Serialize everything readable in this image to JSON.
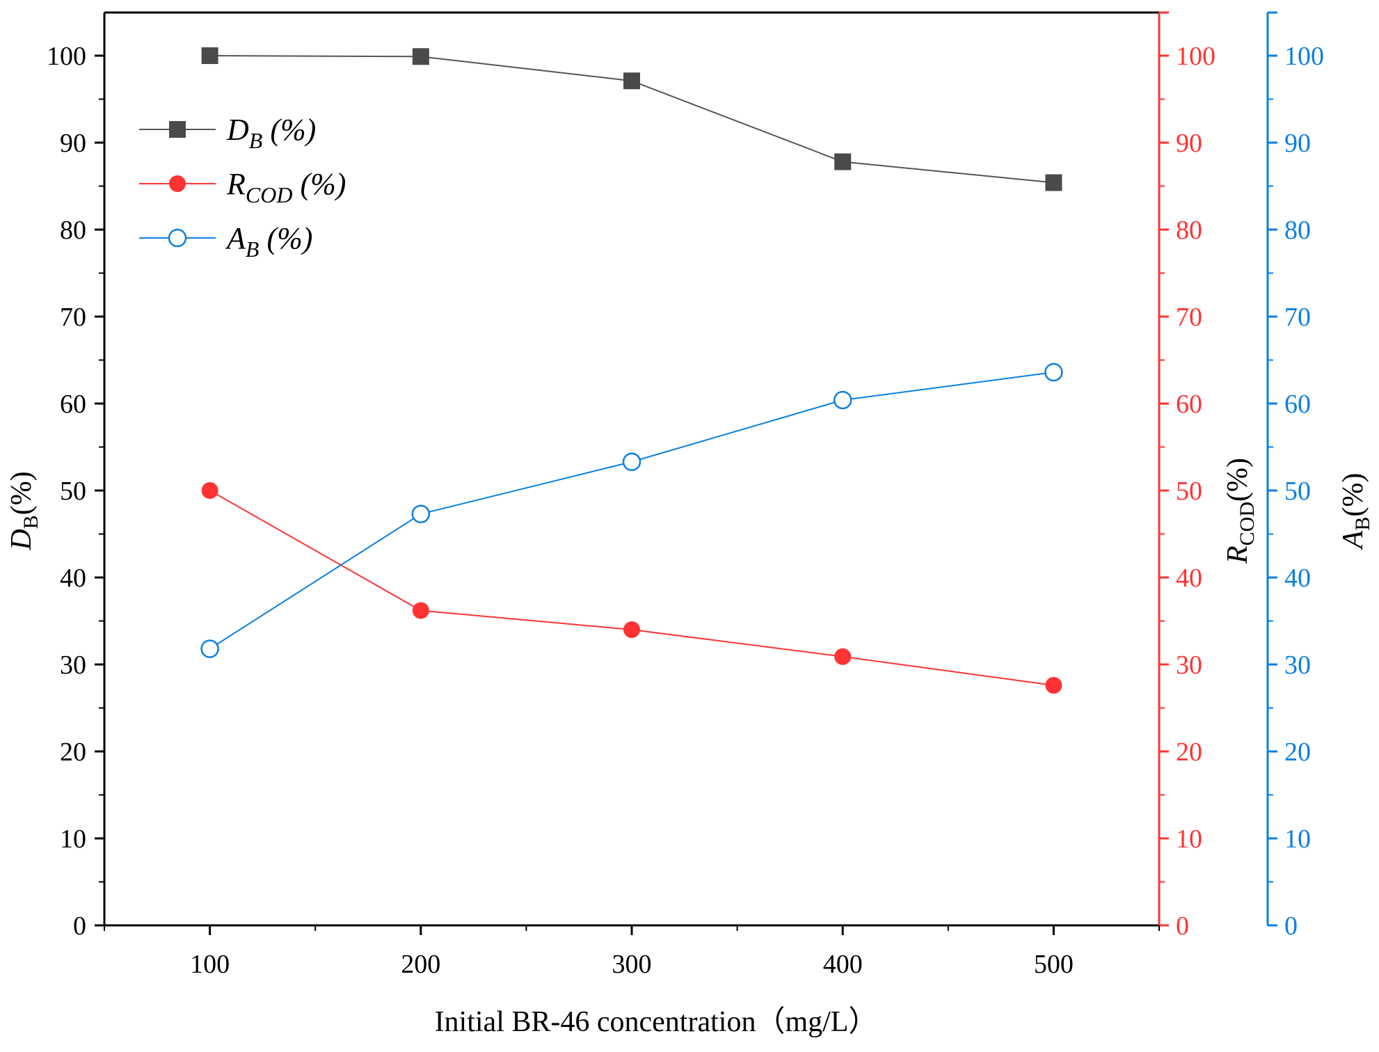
{
  "chart_data": {
    "type": "line",
    "x": [
      100,
      200,
      300,
      400,
      500
    ],
    "xlabel": "Initial BR-46 concentration（mg/L）",
    "xlim": [
      50,
      550
    ],
    "x_ticks": [
      100,
      200,
      300,
      400,
      500
    ],
    "grid": false,
    "legend_position": "top-left",
    "axes": [
      {
        "id": "left",
        "label_main": "D",
        "label_sub": "B",
        "label_suffix": "(%)",
        "color": "#000000",
        "ylim": [
          0,
          105
        ],
        "ticks": [
          0,
          10,
          20,
          30,
          40,
          50,
          60,
          70,
          80,
          90,
          100
        ]
      },
      {
        "id": "right1",
        "label_main": "R",
        "label_sub": "COD",
        "label_suffix": "(%)",
        "color": "#ff3333",
        "ylim": [
          0,
          105
        ],
        "ticks": [
          0,
          10,
          20,
          30,
          40,
          50,
          60,
          70,
          80,
          90,
          100
        ]
      },
      {
        "id": "right2",
        "label_main": "A",
        "label_sub": "B",
        "label_suffix": "(%)",
        "color": "#0a7fe0",
        "ylim": [
          0,
          105
        ],
        "ticks": [
          0,
          10,
          20,
          30,
          40,
          50,
          60,
          70,
          80,
          90,
          100
        ]
      }
    ],
    "series": [
      {
        "name": "D_B (%)",
        "legend_main": "D",
        "legend_sub": "B",
        "legend_suffix": " (%)",
        "axis": "left",
        "color": "#4a4a4a",
        "line_color": "#555555",
        "marker": "square",
        "values": [
          100,
          99.9,
          97.1,
          87.8,
          85.4
        ]
      },
      {
        "name": "R_COD (%)",
        "legend_main": "R",
        "legend_sub": "COD",
        "legend_suffix": " (%)",
        "axis": "right1",
        "color": "#ff3333",
        "line_color": "#ff3333",
        "marker": "circle-filled",
        "values": [
          50,
          36.2,
          34,
          30.9,
          27.6
        ]
      },
      {
        "name": "A_B (%)",
        "legend_main": "A",
        "legend_sub": "B",
        "legend_suffix": " (%)",
        "axis": "right2",
        "color": "#0a7fe0",
        "line_color": "#0a7fe0",
        "marker": "circle-open",
        "values": [
          31.8,
          47.3,
          53.3,
          60.4,
          63.6
        ]
      }
    ]
  }
}
